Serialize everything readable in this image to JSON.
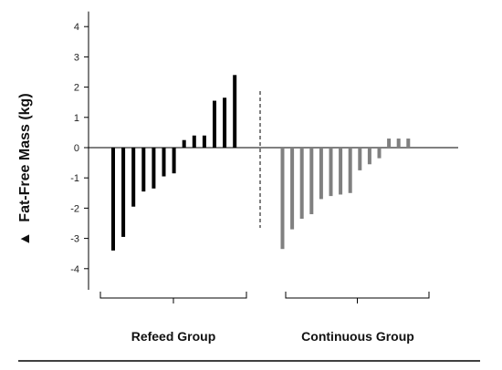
{
  "chart_data": {
    "type": "bar",
    "title": "",
    "ylabel": "Fat-Free Mass (kg)",
    "ylabel_marker": "▲",
    "ylim": [
      -4.5,
      4.5
    ],
    "yticks": [
      -4,
      -3,
      -2,
      -1,
      0,
      1,
      2,
      3,
      4
    ],
    "grid": false,
    "legend": "none",
    "series": [
      {
        "group_label": "Refeed Group",
        "color": "#000000",
        "values": [
          -3.4,
          -2.95,
          -1.95,
          -1.45,
          -1.35,
          -0.95,
          -0.85,
          0.25,
          0.4,
          0.4,
          1.55,
          1.65,
          2.4
        ]
      },
      {
        "group_label": "Continuous Group",
        "color": "#808080",
        "values": [
          -3.35,
          -2.7,
          -2.35,
          -2.2,
          -1.7,
          -1.6,
          -1.55,
          -1.5,
          -0.75,
          -0.55,
          -0.35,
          0.3,
          0.3,
          0.3
        ]
      }
    ]
  }
}
